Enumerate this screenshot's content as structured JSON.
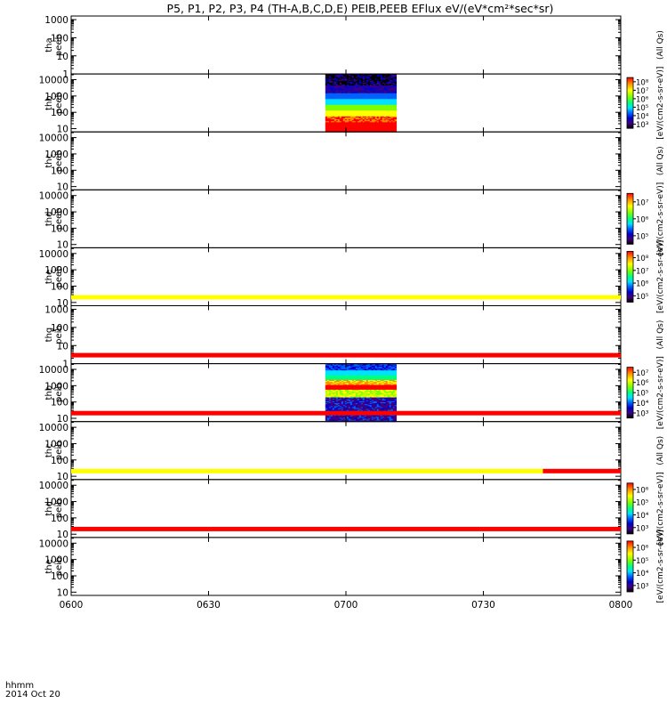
{
  "chart_data": {
    "type": "heatmap",
    "title": "P5, P1, P2, P3, P4 (TH-A,B,C,D,E) PEIB,PEEB EFlux eV/(eV*cm²*sec*sr)",
    "x_axis": {
      "label_line1": "hhmm",
      "label_line2": "2014 Oct 20",
      "tick_labels": [
        "0600",
        "0630",
        "0700",
        "0730",
        "0800"
      ],
      "range_minutes": [
        0,
        120
      ]
    },
    "panels": [
      {
        "label": [
          "tha",
          "peeb"
        ],
        "yticks": [
          "1000",
          "100",
          "10",
          "1"
        ],
        "ylim_log": [
          0,
          3.2
        ],
        "spectrogram": null,
        "colorbar": null,
        "zlabel": "(All Qs)",
        "status_bar": null
      },
      {
        "label": [
          "thb",
          "peeb"
        ],
        "yticks": [
          "10000",
          "1000",
          "100",
          "10"
        ],
        "ylim_log": [
          0.8,
          4.35
        ],
        "spectrogram": {
          "t_start_min": 55.5,
          "t_end_min": 71.0,
          "style": "peeb"
        },
        "colorbar": {
          "labels": [
            "10⁸",
            "10⁷",
            "10⁶",
            "10⁵",
            "10⁴",
            "10³"
          ]
        },
        "zlabel": "[eV/(cm2-s-sr-eV)]",
        "status_bar": null
      },
      {
        "label": [
          "thc",
          "peeb"
        ],
        "yticks": [
          "10000",
          "1000",
          "100",
          "10"
        ],
        "ylim_log": [
          0.8,
          4.35
        ],
        "spectrogram": null,
        "colorbar": null,
        "zlabel": "(All Qs)",
        "status_bar": null
      },
      {
        "label": [
          "thd",
          "peeb"
        ],
        "yticks": [
          "10000",
          "1000",
          "100",
          "10"
        ],
        "ylim_log": [
          0.8,
          4.35
        ],
        "spectrogram": null,
        "colorbar": {
          "labels": [
            "10⁷",
            "10⁶",
            "10⁵"
          ]
        },
        "zlabel": "[eV/(cm2-s-sr-eV)]",
        "status_bar": null
      },
      {
        "label": [
          "the",
          "peeb"
        ],
        "yticks": [
          "10000",
          "1000",
          "100",
          "10"
        ],
        "ylim_log": [
          0.8,
          4.35
        ],
        "spectrogram": null,
        "colorbar": {
          "labels": [
            "10⁸",
            "10⁷",
            "10⁶",
            "10⁵"
          ]
        },
        "zlabel": "[eV/(cm2-s-sr-eV)]",
        "status_bar": [
          {
            "t0": 0,
            "t1": 120,
            "color": "#ffff00"
          }
        ]
      },
      {
        "label": [
          "thg",
          "peib"
        ],
        "yticks": [
          "1000",
          "100",
          "10",
          "1"
        ],
        "ylim_log": [
          0,
          3.2
        ],
        "spectrogram": null,
        "colorbar": null,
        "zlabel": "(All Qs)",
        "status_bar": [
          {
            "t0": 0,
            "t1": 120,
            "color": "#ff0000"
          }
        ]
      },
      {
        "label": [
          "thb",
          "peib"
        ],
        "yticks": [
          "10000",
          "1000",
          "100",
          "10"
        ],
        "ylim_log": [
          0.8,
          4.35
        ],
        "spectrogram": {
          "t_start_min": 55.5,
          "t_end_min": 71.0,
          "style": "peib"
        },
        "colorbar": {
          "labels": [
            "10⁷",
            "10⁶",
            "10⁵",
            "10⁴",
            "10³"
          ]
        },
        "zlabel": "[eV/(cm2-s-sr-eV)]",
        "status_bar": [
          {
            "t0": 0,
            "t1": 120,
            "color": "#ff0000"
          }
        ]
      },
      {
        "label": [
          "thc",
          "peib"
        ],
        "yticks": [
          "10000",
          "1000",
          "100",
          "10"
        ],
        "ylim_log": [
          0.8,
          4.35
        ],
        "spectrogram": null,
        "colorbar": null,
        "zlabel": "(All Qs)",
        "status_bar": [
          {
            "t0": 0,
            "t1": 103,
            "color": "#ffff00"
          },
          {
            "t0": 103,
            "t1": 120,
            "color": "#ff0000"
          }
        ]
      },
      {
        "label": [
          "thd",
          "peib"
        ],
        "yticks": [
          "10000",
          "1000",
          "100",
          "10"
        ],
        "ylim_log": [
          0.8,
          4.35
        ],
        "spectrogram": null,
        "colorbar": {
          "labels": [
            "10⁶",
            "10⁵",
            "10⁴",
            "10³"
          ]
        },
        "zlabel": "[eV/(cm2-s-sr-eV)]",
        "status_bar": [
          {
            "t0": 0,
            "t1": 120,
            "color": "#ff0000"
          }
        ]
      },
      {
        "label": [
          "the",
          "peib"
        ],
        "yticks": [
          "10000",
          "1000",
          "100",
          "10"
        ],
        "ylim_log": [
          0.8,
          4.35
        ],
        "spectrogram": null,
        "colorbar": {
          "labels": [
            "10⁶",
            "10⁵",
            "10⁴",
            "10³"
          ]
        },
        "zlabel": "[eV/(cm2-s-sr-eV)]",
        "status_bar": null
      }
    ],
    "colorbar_colors": [
      "#ff0000",
      "#ff8c00",
      "#ffff00",
      "#80ff00",
      "#00ff80",
      "#00e0ff",
      "#0060ff",
      "#0000c8",
      "#400080",
      "#000000"
    ],
    "grid": false,
    "legend": "none"
  }
}
